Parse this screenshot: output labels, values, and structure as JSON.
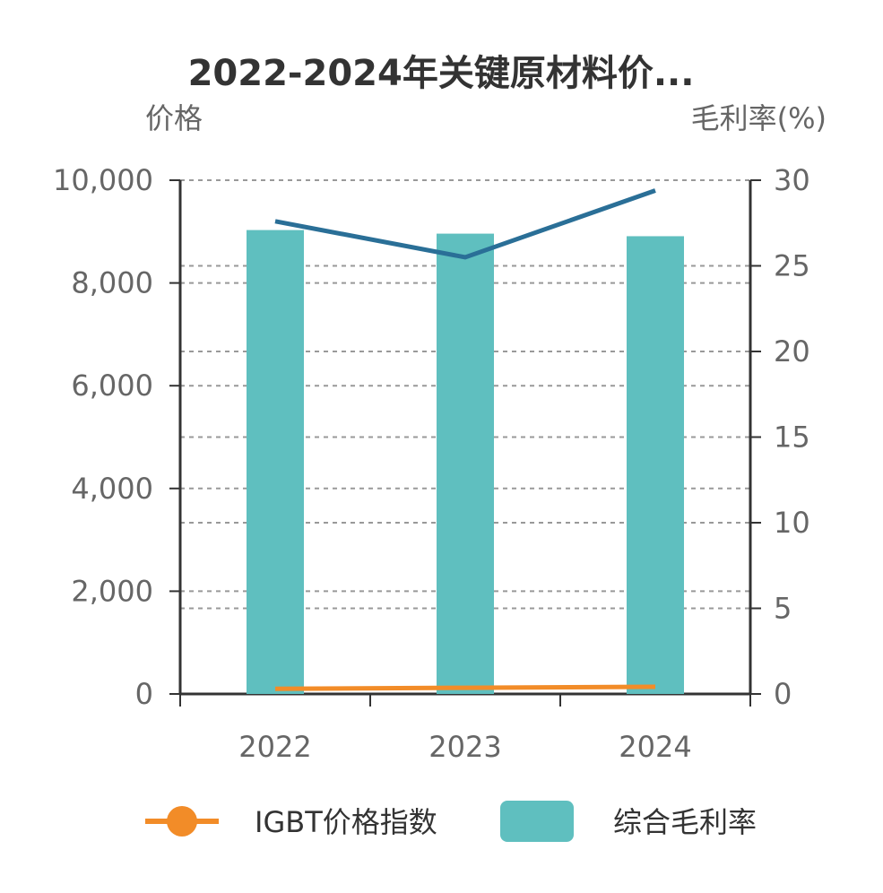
{
  "chart_data": {
    "type": "bar",
    "title": "2022-2024年关键原材料价...",
    "ylabel": "价格",
    "y2label": "毛利率(%)",
    "categories": [
      "2022",
      "2023",
      "2024"
    ],
    "ylim": [
      0,
      10000
    ],
    "y2lim": [
      0,
      30
    ],
    "yticks": [
      "0",
      "2,000",
      "4,000",
      "6,000",
      "8,000",
      "10,000"
    ],
    "y2ticks": [
      "0",
      "5",
      "10",
      "15",
      "20",
      "25",
      "30"
    ],
    "series": [
      {
        "name": "综合毛利率",
        "kind": "bar",
        "axis": "left",
        "color": "#5fbfbf",
        "values": [
          9030,
          8960,
          8910
        ]
      },
      {
        "name": "IGBT价格指数",
        "kind": "line",
        "axis": "left",
        "color": "#f28c28",
        "values": [
          100,
          120,
          140
        ]
      },
      {
        "kind": "line",
        "axis": "right",
        "color": "#2a6f97",
        "values": [
          27.6,
          25.5,
          29.4
        ]
      }
    ],
    "grid": true,
    "legend": "bottom"
  }
}
